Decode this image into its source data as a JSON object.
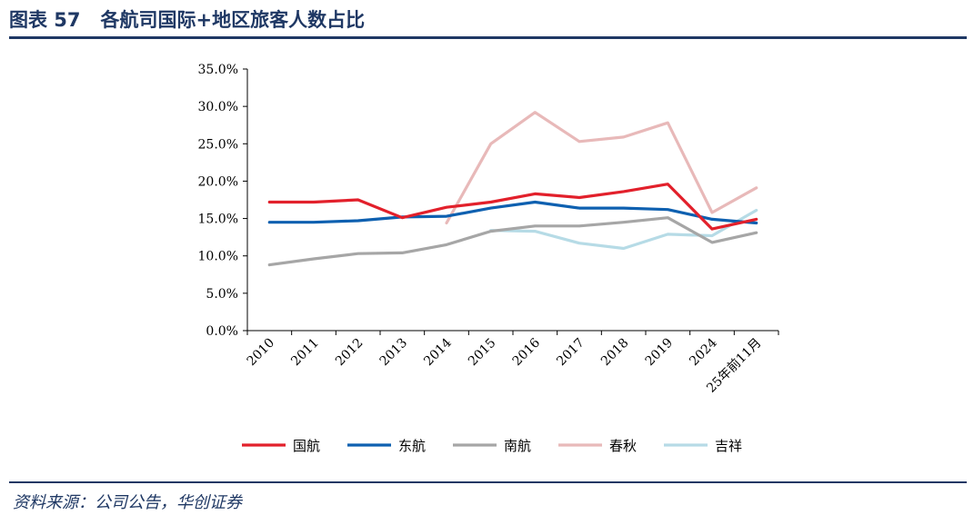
{
  "header": {
    "figure_label": "图表 57",
    "title": "各航司国际+地区旅客人数占比"
  },
  "footer": {
    "source": "资料来源：公司公告，华创证券"
  },
  "chart_data": {
    "type": "line",
    "title": "",
    "xlabel": "",
    "ylabel": "",
    "categories": [
      "2010",
      "2011",
      "2012",
      "2013",
      "2014",
      "2015",
      "2016",
      "2017",
      "2018",
      "2019",
      "2024",
      "25年前11月"
    ],
    "ylim": [
      0,
      35
    ],
    "yticks": [
      "0.0%",
      "5.0%",
      "10.0%",
      "15.0%",
      "20.0%",
      "25.0%",
      "30.0%",
      "35.0%"
    ],
    "ytick_values": [
      0,
      5,
      10,
      15,
      20,
      25,
      30,
      35
    ],
    "grid": false,
    "legend_position": "bottom",
    "series": [
      {
        "name": "国航",
        "color": "#e2202b",
        "values": [
          17.2,
          17.2,
          17.5,
          15.1,
          16.5,
          17.2,
          18.3,
          17.8,
          18.6,
          19.6,
          13.6,
          14.9
        ]
      },
      {
        "name": "东航",
        "color": "#0e60b0",
        "values": [
          14.5,
          14.5,
          14.7,
          15.2,
          15.3,
          16.4,
          17.2,
          16.4,
          16.4,
          16.2,
          14.9,
          14.4
        ]
      },
      {
        "name": "南航",
        "color": "#a6a6a6",
        "values": [
          8.8,
          9.6,
          10.3,
          10.4,
          11.5,
          13.3,
          14.0,
          14.0,
          14.5,
          15.1,
          11.8,
          13.1
        ]
      },
      {
        "name": "春秋",
        "color": "#e8b9b9",
        "values": [
          null,
          null,
          null,
          null,
          14.4,
          25.0,
          29.2,
          25.3,
          25.9,
          27.8,
          15.8,
          19.1
        ]
      },
      {
        "name": "吉祥",
        "color": "#b6dbe6",
        "values": [
          null,
          null,
          null,
          null,
          null,
          13.4,
          13.3,
          11.7,
          11.0,
          12.9,
          12.7,
          16.1
        ]
      }
    ]
  }
}
